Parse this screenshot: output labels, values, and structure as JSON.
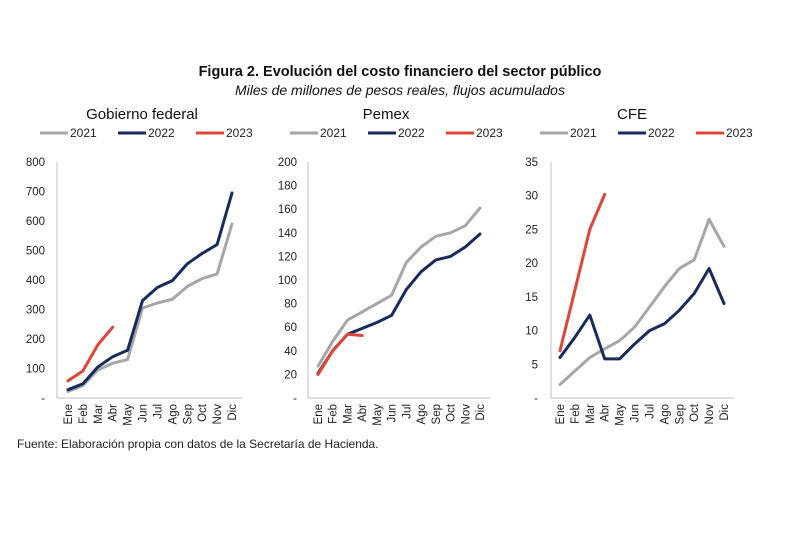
{
  "header": {
    "title": "Figura 2. Evolución del costo financiero del sector público",
    "subtitle": "Miles de millones de pesos reales, flujos acumulados"
  },
  "footer": {
    "source": "Fuente: Elaboración propia con datos de la Secretaría de Hacienda."
  },
  "colors": {
    "2021": "#a6a6a6",
    "2022": "#1b2a5c",
    "2023": "#e0453a"
  },
  "chart_data": [
    {
      "type": "line",
      "title": "Gobierno federal",
      "x": [
        "Ene",
        "Feb",
        "Mar",
        "Abr",
        "May",
        "Jun",
        "Jul",
        "Ago",
        "Sep",
        "Oct",
        "Nov",
        "Dic"
      ],
      "ylim": [
        0,
        800
      ],
      "yticks": [
        "-",
        "100",
        "200",
        "300",
        "400",
        "500",
        "600",
        "700",
        "800"
      ],
      "ytick_values": [
        0,
        100,
        200,
        300,
        400,
        500,
        600,
        700,
        800
      ],
      "legend": [
        "2021",
        "2022",
        "2023"
      ],
      "legend_position": "top",
      "grid": false,
      "series": [
        {
          "name": "2021",
          "values": [
            22,
            42,
            95,
            118,
            130,
            305,
            322,
            335,
            378,
            405,
            420,
            590
          ]
        },
        {
          "name": "2022",
          "values": [
            28,
            48,
            105,
            140,
            162,
            330,
            375,
            398,
            455,
            490,
            520,
            695
          ]
        },
        {
          "name": "2023",
          "values": [
            58,
            92,
            180,
            240
          ]
        }
      ]
    },
    {
      "type": "line",
      "title": "Pemex",
      "x": [
        "Ene",
        "Feb",
        "Mar",
        "Abr",
        "May",
        "Jun",
        "Jul",
        "Ago",
        "Sep",
        "Oct",
        "Nov",
        "Dic"
      ],
      "ylim": [
        0,
        200
      ],
      "yticks": [
        "-",
        "20",
        "40",
        "60",
        "80",
        "100",
        "120",
        "140",
        "160",
        "180",
        "200"
      ],
      "ytick_values": [
        0,
        20,
        40,
        60,
        80,
        100,
        120,
        140,
        160,
        180,
        200
      ],
      "legend": [
        "2021",
        "2022",
        "2023"
      ],
      "legend_position": "top",
      "grid": false,
      "series": [
        {
          "name": "2021",
          "values": [
            27,
            48,
            66,
            73,
            80,
            87,
            115,
            128,
            137,
            140,
            146,
            161
          ]
        },
        {
          "name": "2022",
          "values": [
            21,
            40,
            54,
            59,
            64,
            70,
            92,
            107,
            117,
            120,
            128,
            139
          ]
        },
        {
          "name": "2023",
          "values": [
            20,
            40,
            54,
            53
          ]
        }
      ]
    },
    {
      "type": "line",
      "title": "CFE",
      "x": [
        "Ene",
        "Feb",
        "Mar",
        "Abr",
        "May",
        "Jun",
        "Jul",
        "Ago",
        "Sep",
        "Oct",
        "Nov",
        "Dic"
      ],
      "ylim": [
        0,
        35
      ],
      "yticks": [
        "-",
        "5",
        "10",
        "15",
        "20",
        "25",
        "30",
        "35"
      ],
      "ytick_values": [
        0,
        5,
        10,
        15,
        20,
        25,
        30,
        35
      ],
      "legend": [
        "2021",
        "2022",
        "2023"
      ],
      "legend_position": "top",
      "grid": false,
      "series": [
        {
          "name": "2021",
          "values": [
            2,
            4,
            6,
            7.3,
            8.5,
            10.5,
            13.5,
            16.5,
            19.2,
            20.5,
            26.5,
            22.5
          ]
        },
        {
          "name": "2022",
          "values": [
            6,
            9,
            12.3,
            5.8,
            5.8,
            8,
            10,
            11,
            13,
            15.5,
            19.2,
            14
          ]
        },
        {
          "name": "2023",
          "values": [
            7,
            16,
            25,
            30.2
          ]
        }
      ]
    }
  ]
}
